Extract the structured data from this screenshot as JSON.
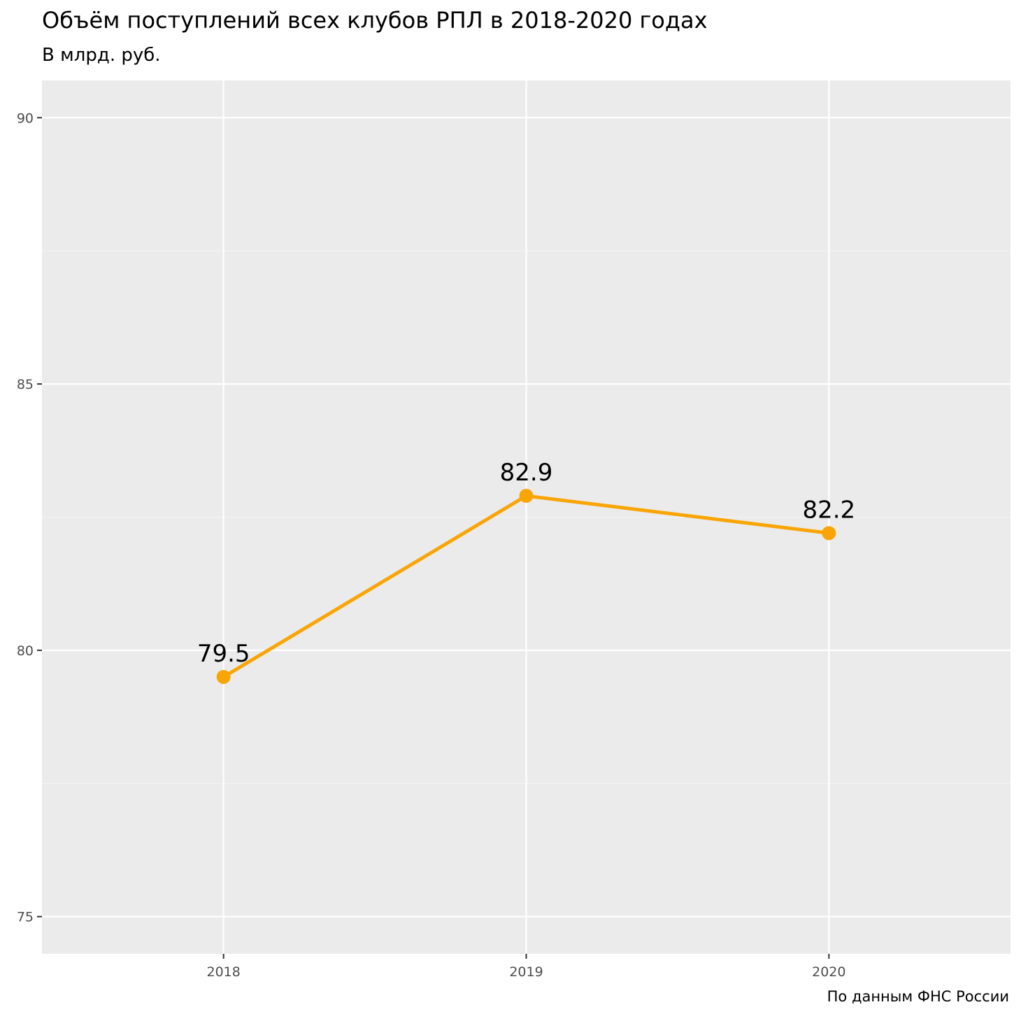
{
  "chart_data": {
    "type": "line",
    "title": "Объём поступлений всех клубов РПЛ в 2018-2020 годах",
    "subtitle": "В млрд. руб.",
    "caption": "По данным ФНС России",
    "xlabel": "",
    "ylabel": "",
    "categories": [
      "2018",
      "2019",
      "2020"
    ],
    "series": [
      {
        "values": [
          79.5,
          82.9,
          82.2
        ],
        "labels": [
          "79.5",
          "82.9",
          "82.2"
        ]
      }
    ],
    "y_ticks": [
      75,
      80,
      85,
      90
    ],
    "y_tick_labels": [
      "75",
      "80",
      "85",
      "90"
    ],
    "ylim": [
      74.3,
      90.7
    ],
    "grid": true,
    "colors": {
      "line": "#f9a505",
      "panel": "#ebebeb",
      "grid": "#ffffff"
    }
  }
}
